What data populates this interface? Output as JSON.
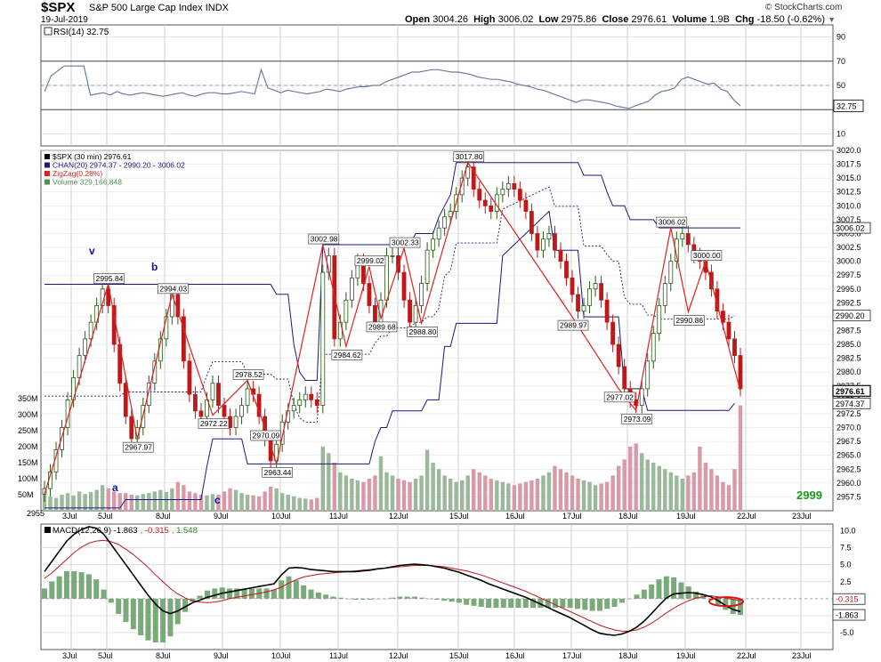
{
  "header": {
    "symbol": "$SPX",
    "description": "S&P 500 Large Cap Index",
    "exchange": "INDX",
    "date": "19-Jul-2019",
    "copyright": "© StockCharts.com",
    "open_label": "Open",
    "open": "3004.26",
    "high_label": "High",
    "high": "3006.02",
    "low_label": "Low",
    "low": "2975.86",
    "close_label": "Close",
    "close": "2976.61",
    "volume_label": "Volume",
    "volume": "1.9B",
    "chg_label": "Chg",
    "chg": "-18.50 (-0.62%)",
    "chg_arrow": "▼"
  },
  "colors": {
    "up": "#2a5a1a",
    "down": "#c01818",
    "zigzag": "#dd2222",
    "channel": "#1a1a7a",
    "vol_up": "#9ab99a",
    "vol_down": "#d99aa8",
    "rsi": "#6a7ea0",
    "macd_hist": "#7aaa7a",
    "grid": "#cfcfcf"
  },
  "chart_data": [
    {
      "id": "rsi",
      "type": "line",
      "legend": "RSI(14) 32.75",
      "current": "32.75",
      "ylim": [
        0,
        100
      ],
      "yticks": [
        "90",
        "70",
        "50",
        "30",
        "10"
      ],
      "levels": [
        70,
        50,
        30
      ],
      "values": [
        45,
        58,
        62,
        66,
        66,
        66,
        66,
        42,
        43,
        44,
        42,
        45,
        43,
        42,
        43,
        44,
        43,
        42,
        41,
        42,
        43,
        44,
        42,
        41,
        43,
        44,
        44,
        43,
        43,
        44,
        45,
        44,
        43,
        63,
        48,
        46,
        44,
        46,
        45,
        44,
        43,
        44,
        45,
        47,
        46,
        45,
        47,
        48,
        49,
        49,
        50,
        50,
        53,
        55,
        57,
        59,
        61,
        61,
        62,
        63,
        63,
        62,
        61,
        61,
        60,
        59,
        57,
        56,
        55,
        55,
        54,
        53,
        51,
        50,
        49,
        47,
        46,
        44,
        42,
        40,
        38,
        36,
        38,
        38,
        37,
        36,
        35,
        33,
        32,
        31,
        33,
        35,
        37,
        42,
        45,
        46,
        48,
        55,
        57,
        55,
        53,
        51,
        52,
        47,
        45,
        38,
        33
      ]
    },
    {
      "id": "price",
      "type": "candlestick",
      "legend": [
        "$SPX (30 min) 2976.61",
        "CHAN(20) 2974.37 - 2990.20 - 3006.02",
        "ZigZag(0.28%)",
        "Volume 329,166,848"
      ],
      "ylim": [
        2955,
        3020
      ],
      "yticks": [
        "3020.0",
        "3017.5",
        "3015.0",
        "3012.5",
        "3010.0",
        "3007.5",
        "3005.0",
        "3002.5",
        "3000.0",
        "2997.5",
        "2995.0",
        "2992.5",
        "2990.0",
        "2987.5",
        "2985.0",
        "2982.5",
        "2980.0",
        "2977.5",
        "2975.0",
        "2972.5",
        "2970.0",
        "2967.5",
        "2965.0",
        "2962.5",
        "2960.0",
        "2957.5"
      ],
      "vol_ticks": [
        "350M",
        "300M",
        "250M",
        "200M",
        "150M",
        "100M",
        "50M"
      ],
      "x_label_left": "2955",
      "dates": [
        "3Jul",
        "5Jul",
        "8Jul",
        "9Jul",
        "10Jul",
        "11Jul",
        "12Jul",
        "15Jul",
        "16Jul",
        "17Jul",
        "18Jul",
        "19Jul",
        "22Jul",
        "23Jul"
      ],
      "close": [
        2959,
        2962,
        2966,
        2970,
        2975,
        2979,
        2983,
        2986,
        2989,
        2992,
        2995,
        2992,
        2985,
        2978,
        2972,
        2968,
        2970,
        2974,
        2978,
        2982,
        2986,
        2990,
        2994,
        2990,
        2982,
        2976,
        2973,
        2972,
        2975,
        2978,
        2974,
        2972,
        2970,
        2972,
        2974,
        2977,
        2976,
        2972,
        2968,
        2964,
        2967,
        2971,
        2973,
        2974,
        2975,
        2976,
        2975,
        2974,
        2998,
        3001,
        2986,
        2989,
        2993,
        2997,
        3000,
        2996,
        2992,
        2989,
        2993,
        3001,
        3001,
        2998,
        2993,
        2989,
        2992,
        2996,
        3002,
        3004,
        3006,
        3008,
        3009,
        3012,
        3015,
        3017,
        3013,
        3011,
        3010,
        3009,
        3012,
        3013,
        3014,
        3013,
        3011,
        3009,
        3005,
        3002,
        3004,
        3005,
        3002,
        3000,
        2997,
        2994,
        2991,
        2992,
        2995,
        2996,
        2993,
        2989,
        2985,
        2981,
        2977,
        2975,
        2974,
        2977,
        2982,
        2987,
        2992,
        2996,
        3000,
        3004,
        3005,
        3003,
        3001,
        3000,
        2998,
        2995,
        2991,
        2989,
        2986,
        2983,
        2977
      ],
      "volume": [
        60,
        45,
        40,
        50,
        55,
        48,
        60,
        52,
        58,
        65,
        80,
        70,
        60,
        55,
        55,
        50,
        48,
        52,
        55,
        60,
        65,
        58,
        70,
        90,
        80,
        60,
        55,
        50,
        48,
        52,
        50,
        60,
        70,
        65,
        55,
        50,
        48,
        45,
        60,
        75,
        70,
        55,
        50,
        45,
        40,
        38,
        35,
        40,
        200,
        180,
        150,
        120,
        110,
        100,
        95,
        90,
        100,
        110,
        170,
        120,
        110,
        100,
        95,
        90,
        100,
        110,
        190,
        150,
        130,
        110,
        100,
        90,
        95,
        110,
        130,
        120,
        110,
        100,
        95,
        90,
        85,
        80,
        85,
        90,
        95,
        100,
        110,
        120,
        140,
        130,
        120,
        110,
        100,
        95,
        90,
        80,
        85,
        90,
        110,
        140,
        160,
        200,
        210,
        180,
        160,
        150,
        140,
        130,
        120,
        110,
        100,
        110,
        120,
        200,
        150,
        130,
        110,
        90,
        80,
        130,
        329
      ],
      "channel_upper": [
        2995.84,
        2995.84,
        2995.84,
        2995.84,
        2995.84,
        2995.84,
        2995.84,
        2995.84,
        2995.84,
        2995.84,
        2995.84,
        2995.84,
        2995.84,
        2995.84,
        2995.84,
        2995.84,
        2995.84,
        2995.84,
        2995.84,
        2995.84,
        2995.84,
        2995.84,
        2995.84,
        2995.84,
        2995.84,
        2995.84,
        2995.84,
        2995.84,
        2995.84,
        2995.84,
        2995.84,
        2995.84,
        2995.84,
        2995.84,
        2995.84,
        2995.84,
        2995.84,
        2995.84,
        2995.84,
        2995.84,
        2994.03,
        2994.03,
        2994.03,
        2985,
        2980,
        2978.52,
        2978.52,
        2978.52,
        3002.98,
        3002.98,
        3002.98,
        3002.98,
        3002.98,
        3002.98,
        3002.98,
        3002.98,
        3002.98,
        3002.98,
        3002.98,
        3002.98,
        3002.98,
        3002.98,
        3002.98,
        3002.98,
        3005,
        3005,
        3005,
        3005,
        3008,
        3010,
        3012,
        3017.8,
        3017.8,
        3017.8,
        3017.8,
        3017.8,
        3017.8,
        3017.8,
        3017.8,
        3017.8,
        3017.8,
        3017.8,
        3017.8,
        3017.8,
        3017.8,
        3017.8,
        3017.8,
        3017.8,
        3017.8,
        3017.8,
        3017.8,
        3017.8,
        3017.8,
        3015.5,
        3015.5,
        3015.5,
        3015.5,
        3012.5,
        3010,
        3010,
        3010,
        3007.5,
        3007.5,
        3007.5,
        3007.5,
        3007.5,
        3006.02,
        3006.02,
        3006.02,
        3006.02,
        3006.02,
        3006.02,
        3006.02,
        3006.02,
        3006.02,
        3006.02,
        3006.02,
        3006.02,
        3006.02,
        3006.02,
        3006.02
      ],
      "channel_lower": [
        2955.5,
        2955.5,
        2955.5,
        2955.5,
        2955.5,
        2955.5,
        2955.5,
        2955.5,
        2955.5,
        2955.5,
        2955.5,
        2955.5,
        2955.5,
        2955.5,
        2957,
        2957,
        2957,
        2957,
        2957,
        2957,
        2957,
        2957,
        2957,
        2957,
        2957,
        2957,
        2957,
        2957,
        2963,
        2967.97,
        2967.97,
        2967.97,
        2967.97,
        2967.97,
        2967.97,
        2963.44,
        2963.44,
        2963.44,
        2963.44,
        2963.44,
        2963.44,
        2963.44,
        2963.44,
        2963.44,
        2963.44,
        2963.44,
        2963.44,
        2963.44,
        2963.44,
        2963.44,
        2963.44,
        2963.44,
        2963.44,
        2963.44,
        2963.44,
        2963.44,
        2963.44,
        2967.5,
        2970,
        2970,
        2973,
        2973,
        2973,
        2973,
        2973,
        2973,
        2975,
        2975,
        2975,
        2984.62,
        2984.62,
        2988.8,
        2988.8,
        2988.8,
        2988.8,
        2988.8,
        2988.8,
        2988.8,
        2988.8,
        3001,
        3002,
        3003,
        3004,
        3005,
        3006,
        3007,
        3008,
        3009,
        3002,
        3002,
        3002,
        3002,
        3002,
        2990,
        2989.97,
        2989.97,
        2989.97,
        2989.97,
        2989.97,
        2989.97,
        2977,
        2977,
        2977,
        2977,
        2973.09,
        2973.09,
        2973.09,
        2973.09,
        2973.09,
        2973.09,
        2973.09,
        2973.09,
        2973.09,
        2973.09,
        2973.09,
        2973.09,
        2973.09,
        2973.09,
        2973.09,
        2974.37
      ],
      "channel_mid_label": "2990.20",
      "channel_lower_label": "2974.37",
      "channel_upper_label": "3006.02",
      "close_label": "2976.61",
      "zigzag_pivots": [
        {
          "i": 0,
          "v": 2958.0
        },
        {
          "i": 11,
          "v": 2995.84
        },
        {
          "i": 16,
          "v": 2967.97
        },
        {
          "i": 22,
          "v": 2994.03
        },
        {
          "i": 29,
          "v": 2972.22
        },
        {
          "i": 35,
          "v": 2978.52
        },
        {
          "i": 38,
          "v": 2970.09
        },
        {
          "i": 40,
          "v": 2963.44
        },
        {
          "i": 48,
          "v": 3002.98
        },
        {
          "i": 52,
          "v": 2984.62
        },
        {
          "i": 56,
          "v": 2999.02
        },
        {
          "i": 58,
          "v": 2989.68
        },
        {
          "i": 62,
          "v": 3002.33
        },
        {
          "i": 65,
          "v": 2988.8
        },
        {
          "i": 73,
          "v": 3017.8
        },
        {
          "i": 91,
          "v": 2989.97
        },
        {
          "i": 99,
          "v": 2977.02
        },
        {
          "i": 102,
          "v": 2973.09
        },
        {
          "i": 108,
          "v": 3006.02
        },
        {
          "i": 111,
          "v": 2990.86
        },
        {
          "i": 114,
          "v": 3000.0
        },
        {
          "i": 120,
          "v": 2976.61
        }
      ],
      "pivot_labels": [
        "2995.84",
        "2967.97",
        "2994.03",
        "2972.22",
        "2978.52",
        "2970.09",
        "2963.44",
        "3002.98",
        "2984.62",
        "2999.02",
        "2989.68",
        "3002.33",
        "2988.80",
        "3017.80",
        "2989.97",
        "2977.02",
        "2973.09",
        "3006.02",
        "2990.86",
        "3000.00"
      ],
      "wave_labels": [
        "v",
        "b",
        "a",
        "c"
      ],
      "watermark_value": "2999"
    },
    {
      "id": "macd",
      "type": "line",
      "legend_main": "MACD(12,26,9) -1.863",
      "legend_signal": "-0.315",
      "legend_hist": "1.548",
      "ylim": [
        -7.5,
        11
      ],
      "yticks": [
        "10.0",
        "7.5",
        "5.0",
        "2.5",
        "-2.5",
        "-5.0"
      ],
      "current_signal": "-0.315",
      "current_macd": "-1.863",
      "macd": [
        4,
        5.5,
        7,
        8.5,
        9.5,
        10.2,
        10.6,
        10.4,
        9.5,
        8,
        6.5,
        5,
        3.5,
        2,
        0.5,
        -0.8,
        -1.8,
        -2.2,
        -1.8,
        -1.2,
        -0.6,
        -0.2,
        0.2,
        0.5,
        0.8,
        1,
        1.2,
        1.4,
        1.6,
        1.8,
        2,
        2.2,
        3.5,
        4.5,
        4.6,
        4.5,
        4.3,
        4.2,
        4.1,
        4,
        4,
        4,
        4,
        4.1,
        4.2,
        4.4,
        4.5,
        4.7,
        4.9,
        5,
        5.1,
        5,
        4.9,
        4.7,
        4.5,
        4.2,
        3.9,
        3.5,
        3.1,
        2.7,
        2.2,
        1.8,
        1.4,
        1,
        0.6,
        0.2,
        -0.3,
        -0.8,
        -1.3,
        -1.8,
        -2.3,
        -2.8,
        -3.4,
        -4,
        -4.6,
        -5.1,
        -5.3,
        -5.4,
        -5.2,
        -4.8,
        -4.2,
        -3.3,
        -2.2,
        -1,
        0.1,
        0.7,
        0.8,
        0.9,
        0.8,
        0.6,
        0.3,
        -0.3,
        -1,
        -1.6,
        -1.9
      ],
      "signal": [
        3,
        3.8,
        4.8,
        5.8,
        6.8,
        7.6,
        8.2,
        8.5,
        8.6,
        8.4,
        8,
        7.3,
        6.5,
        5.6,
        4.6,
        3.5,
        2.5,
        1.5,
        0.7,
        0.1,
        -0.3,
        -0.5,
        -0.6,
        -0.5,
        -0.3,
        0,
        0.2,
        0.4,
        0.6,
        0.8,
        1,
        1.3,
        1.7,
        2.3,
        2.8,
        3.2,
        3.4,
        3.6,
        3.7,
        3.8,
        3.9,
        4,
        4.1,
        4.2,
        4.3,
        4.4,
        4.5,
        4.6,
        4.7,
        4.8,
        4.9,
        4.9,
        4.9,
        4.8,
        4.7,
        4.5,
        4.3,
        4.1,
        3.8,
        3.5,
        3.1,
        2.7,
        2.3,
        1.9,
        1.5,
        1.1,
        0.6,
        0.1,
        -0.4,
        -0.9,
        -1.4,
        -1.9,
        -2.4,
        -2.9,
        -3.4,
        -3.9,
        -4.3,
        -4.6,
        -4.8,
        -4.8,
        -4.6,
        -4.2,
        -3.6,
        -2.9,
        -2.1,
        -1.4,
        -0.8,
        -0.3,
        0.1,
        0.3,
        0.4,
        0.3,
        0.1,
        -0.1,
        -0.3
      ]
    }
  ]
}
